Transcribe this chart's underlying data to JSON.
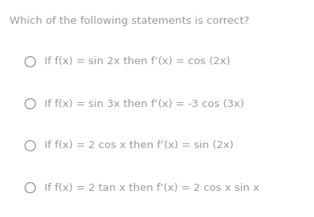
{
  "title": "Which of the following statements is correct?",
  "title_color": "#999999",
  "title_fontsize": 9.5,
  "options": [
    "If f(x) = sin 2x then f’(x) = cos (2x)",
    "If f(x) = sin 3x then f’(x) = -3 cos (3x)",
    "If f(x) = 2 cos x then f’(x) = sin (2x)",
    "If f(x) = 2 tan x then f’(x) = 2 cos x sin x"
  ],
  "option_color": "#999999",
  "option_fontsize": 9.5,
  "background_color": "#ffffff",
  "fig_width": 3.95,
  "fig_height": 2.74,
  "dpi": 100
}
